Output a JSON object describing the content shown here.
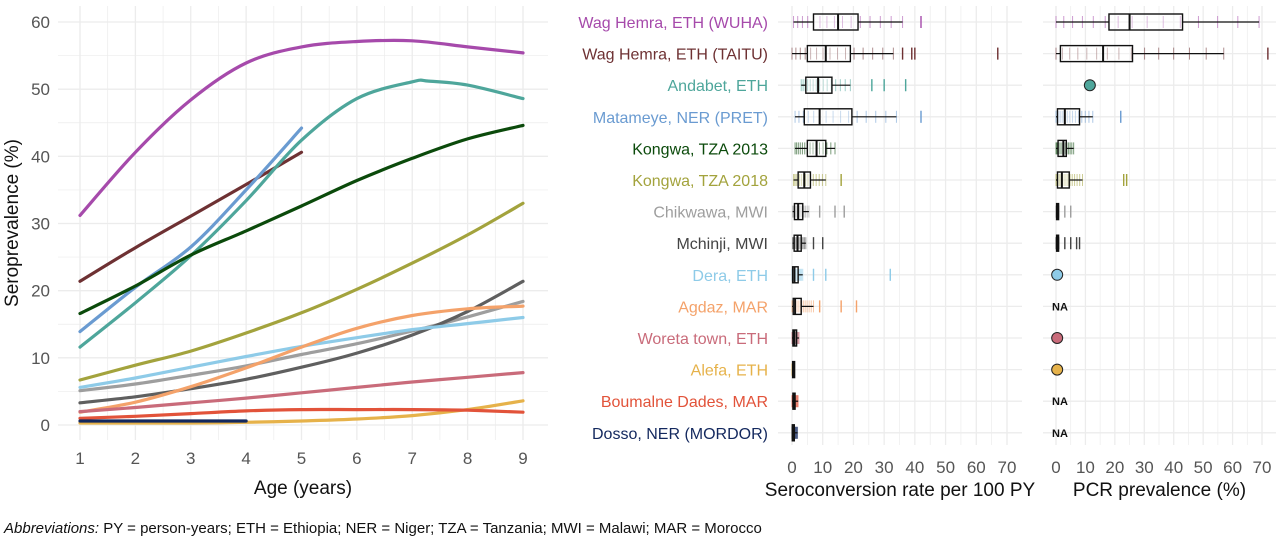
{
  "chart_data": [
    {
      "type": "line",
      "xlabel": "Age (years)",
      "ylabel": "Seroprevalence (%)",
      "xlim": [
        1,
        9
      ],
      "ylim": [
        0,
        60
      ],
      "xticks": [
        "1",
        "2",
        "3",
        "4",
        "5",
        "6",
        "7",
        "8",
        "9"
      ],
      "yticks": [
        "0",
        "10",
        "20",
        "30",
        "40",
        "50",
        "60"
      ],
      "series": [
        {
          "name": "Wag Hemra, ETH (WUHA)",
          "color": "#a64aab",
          "x": [
            1,
            2,
            3,
            4,
            5,
            6,
            7,
            8,
            9
          ],
          "y": [
            31.2,
            40.6,
            48.4,
            53.9,
            56.3,
            57.1,
            57.2,
            56.3,
            55.4
          ]
        },
        {
          "name": "Wag Hemra, ETH (TAITU)",
          "color": "#6e3133",
          "x": [
            1,
            2,
            3,
            4,
            5
          ],
          "y": [
            21.4,
            26.4,
            31.1,
            35.8,
            40.6
          ]
        },
        {
          "name": "Andabet, ETH",
          "color": "#4ea69b",
          "x": [
            1,
            2,
            3,
            4,
            5,
            6,
            7,
            7.3,
            8,
            9
          ],
          "y": [
            11.6,
            18.2,
            25.2,
            33.4,
            42.4,
            48.6,
            51.1,
            51.2,
            50.6,
            48.6
          ]
        },
        {
          "name": "Matameye, NER (PRET)",
          "color": "#6a9bd1",
          "x": [
            1,
            2,
            3,
            4,
            5
          ],
          "y": [
            13.9,
            20.5,
            26.5,
            35.0,
            44.2
          ]
        },
        {
          "name": "Kongwa, TZA 2013",
          "color": "#0b4a0b",
          "x": [
            1,
            2,
            3,
            4,
            5,
            6,
            7,
            8,
            9
          ],
          "y": [
            16.6,
            20.7,
            25.3,
            28.9,
            32.6,
            36.4,
            39.7,
            42.6,
            44.6
          ]
        },
        {
          "name": "Kongwa, TZA 2018",
          "color": "#a3a33d",
          "x": [
            1,
            2,
            3,
            4,
            5,
            6,
            7,
            8,
            9
          ],
          "y": [
            6.7,
            8.9,
            11.0,
            13.7,
            16.7,
            20.2,
            24.1,
            28.3,
            33.0
          ]
        },
        {
          "name": "Chikwawa, MWI",
          "color": "#9e9e9e",
          "x": [
            1,
            2,
            3,
            4,
            5,
            6,
            7,
            8,
            9
          ],
          "y": [
            5.1,
            6.1,
            7.4,
            8.8,
            10.5,
            12.1,
            14.0,
            16.1,
            18.4
          ]
        },
        {
          "name": "Mchinji, MWI",
          "color": "#5f5f5f",
          "x": [
            1,
            2,
            3,
            4,
            5,
            6,
            7,
            8,
            9
          ],
          "y": [
            3.3,
            4.2,
            5.4,
            6.8,
            8.6,
            10.7,
            13.4,
            16.9,
            21.4
          ]
        },
        {
          "name": "Dera, ETH",
          "color": "#8ecbe8",
          "x": [
            1,
            2,
            3,
            4,
            5,
            6,
            7,
            8,
            9
          ],
          "y": [
            5.6,
            7.0,
            8.6,
            10.2,
            11.7,
            13.0,
            14.2,
            15.1,
            16.0
          ]
        },
        {
          "name": "Agdaz, MAR",
          "color": "#f4a26a",
          "x": [
            1,
            2,
            3,
            4,
            5,
            6,
            7,
            8,
            9
          ],
          "y": [
            1.9,
            3.4,
            5.7,
            8.5,
            11.6,
            14.4,
            16.3,
            17.3,
            17.7
          ]
        },
        {
          "name": "Woreta town, ETH",
          "color": "#c96b7a",
          "x": [
            1,
            2,
            3,
            4,
            5,
            6,
            7,
            8,
            9
          ],
          "y": [
            2.0,
            2.6,
            3.3,
            4.0,
            4.8,
            5.6,
            6.4,
            7.1,
            7.8
          ]
        },
        {
          "name": "Alefa, ETH",
          "color": "#e6b24a",
          "x": [
            1,
            2,
            3,
            4,
            5,
            6,
            7,
            8,
            9
          ],
          "y": [
            0.3,
            0.3,
            0.3,
            0.4,
            0.6,
            0.9,
            1.4,
            2.3,
            3.6
          ]
        },
        {
          "name": "Boumalne Dades, MAR",
          "color": "#e2533a",
          "x": [
            1,
            2,
            3,
            4,
            5,
            6,
            7,
            8,
            9
          ],
          "y": [
            1.0,
            1.3,
            1.7,
            2.1,
            2.3,
            2.3,
            2.3,
            2.2,
            1.9
          ]
        },
        {
          "name": "Dosso, NER (MORDOR)",
          "color": "#13285e",
          "x": [
            1,
            2,
            3,
            4
          ],
          "y": [
            0.6,
            0.6,
            0.6,
            0.6
          ]
        }
      ]
    },
    {
      "type": "box",
      "xlabel": "Seroconversion rate per 100 PY",
      "xlim": [
        0,
        72
      ],
      "xticks": [
        "0",
        "10",
        "20",
        "30",
        "40",
        "50",
        "60",
        "70"
      ],
      "categories": [
        "Wag Hemra, ETH (WUHA)",
        "Wag Hemra, ETH (TAITU)",
        "Andabet, ETH",
        "Matameye, NER (PRET)",
        "Kongwa, TZA 2013",
        "Kongwa, TZA 2018",
        "Chikwawa, MWI",
        "Mchinji, MWI",
        "Dera, ETH",
        "Agdaz, MAR",
        "Woreta town, ETH",
        "Alefa, ETH",
        "Boumalne Dades, MAR",
        "Dosso, NER (MORDOR)"
      ],
      "label_colors": [
        "#a64aab",
        "#6e3133",
        "#4ea69b",
        "#6a9bd1",
        "#0b4a0b",
        "#a3a33d",
        "#9e9e9e",
        "#444444",
        "#8ecbe8",
        "#f4a26a",
        "#c96b7a",
        "#e6b24a",
        "#e2533a",
        "#13285e"
      ],
      "boxes": [
        {
          "min": 0.5,
          "q1": 7,
          "median": 15,
          "q3": 21.5,
          "max": 36,
          "outliers": [
            42
          ]
        },
        {
          "min": 0,
          "q1": 5,
          "median": 11,
          "q3": 19,
          "max": 33,
          "outliers": [
            36,
            39,
            40,
            67
          ]
        },
        {
          "min": 3,
          "q1": 4.5,
          "median": 8.5,
          "q3": 13,
          "max": 19,
          "outliers": [
            26,
            30,
            37
          ]
        },
        {
          "min": 1,
          "q1": 4,
          "median": 9,
          "q3": 19.5,
          "max": 34,
          "outliers": [
            42
          ]
        },
        {
          "min": 1,
          "q1": 5,
          "median": 8,
          "q3": 11,
          "max": 14,
          "outliers": []
        },
        {
          "min": 0.5,
          "q1": 2,
          "median": 4,
          "q3": 6,
          "max": 11,
          "outliers": [
            16
          ]
        },
        {
          "min": 0.2,
          "q1": 0.8,
          "median": 2,
          "q3": 3.5,
          "max": 5.5,
          "outliers": [
            9,
            14,
            17
          ]
        },
        {
          "min": 0.2,
          "q1": 0.7,
          "median": 1.8,
          "q3": 3,
          "max": 4.5,
          "outliers": [
            7,
            10
          ]
        },
        {
          "min": 0,
          "q1": 0.2,
          "median": 0.8,
          "q3": 2,
          "max": 3.5,
          "outliers": [
            7,
            11,
            32
          ]
        },
        {
          "min": 0,
          "q1": 0.4,
          "median": 1,
          "q3": 3,
          "max": 7,
          "outliers": [
            9,
            16,
            21
          ]
        },
        {
          "min": 0,
          "q1": 0.3,
          "median": 0.8,
          "q3": 1.5,
          "max": 2.3,
          "outliers": []
        },
        {
          "min": 0,
          "q1": 0.2,
          "median": 0.4,
          "q3": 0.6,
          "max": 0.8,
          "outliers": []
        },
        {
          "min": 0,
          "q1": 0.3,
          "median": 0.6,
          "q3": 1,
          "max": 2,
          "outliers": []
        },
        {
          "min": 0,
          "q1": 0.1,
          "median": 0.3,
          "q3": 0.6,
          "max": 1.8,
          "outliers": []
        }
      ]
    },
    {
      "type": "box",
      "xlabel": "PCR prevalence (%)",
      "xlim": [
        0,
        74
      ],
      "xticks": [
        "0",
        "10",
        "20",
        "30",
        "40",
        "50",
        "60",
        "70"
      ],
      "categories": [
        "Wag Hemra, ETH (WUHA)",
        "Wag Hemra, ETH (TAITU)",
        "Andabet, ETH",
        "Matameye, NER (PRET)",
        "Kongwa, TZA 2013",
        "Kongwa, TZA 2018",
        "Chikwawa, MWI",
        "Mchinji, MWI",
        "Dera, ETH",
        "Agdaz, MAR",
        "Woreta town, ETH",
        "Alefa, ETH",
        "Boumalne Dades, MAR",
        "Dosso, NER (MORDOR)"
      ],
      "na_text": "NA",
      "boxes": [
        {
          "type": "box",
          "min": 0,
          "q1": 18,
          "median": 25,
          "q3": 43,
          "max": 69,
          "outliers": []
        },
        {
          "type": "box",
          "min": 0,
          "q1": 1.5,
          "median": 16,
          "q3": 26,
          "max": 57,
          "outliers": [
            72
          ]
        },
        {
          "type": "point",
          "value": 11.5,
          "color": "#4ea69b"
        },
        {
          "type": "box",
          "min": 0,
          "q1": 0.5,
          "median": 3,
          "q3": 8,
          "max": 12.5,
          "outliers": [
            22
          ]
        },
        {
          "type": "box",
          "min": 0,
          "q1": 0.7,
          "median": 2.5,
          "q3": 3.5,
          "max": 6,
          "outliers": []
        },
        {
          "type": "box",
          "min": 0,
          "q1": 0.5,
          "median": 2,
          "q3": 4.5,
          "max": 9,
          "outliers": [
            23,
            24
          ]
        },
        {
          "type": "box",
          "min": 0,
          "q1": 0.2,
          "median": 0.4,
          "q3": 0.8,
          "max": 1,
          "outliers": [
            3,
            5
          ]
        },
        {
          "type": "box",
          "min": 0,
          "q1": 0.2,
          "median": 0.4,
          "q3": 0.8,
          "max": 1,
          "outliers": [
            3,
            5,
            7,
            8
          ]
        },
        {
          "type": "point",
          "value": 0.4,
          "color": "#8ecbe8"
        },
        {
          "type": "na"
        },
        {
          "type": "point",
          "value": 0.4,
          "color": "#c96b7a"
        },
        {
          "type": "point",
          "value": 0.4,
          "color": "#e6b24a"
        },
        {
          "type": "na"
        },
        {
          "type": "na"
        }
      ]
    }
  ],
  "footnote": {
    "lead": "Abbreviations:",
    "text": " PY = person-years; ETH = Ethiopia; NER = Niger; TZA = Tanzania; MWI = Malawi; MAR = Morocco"
  }
}
